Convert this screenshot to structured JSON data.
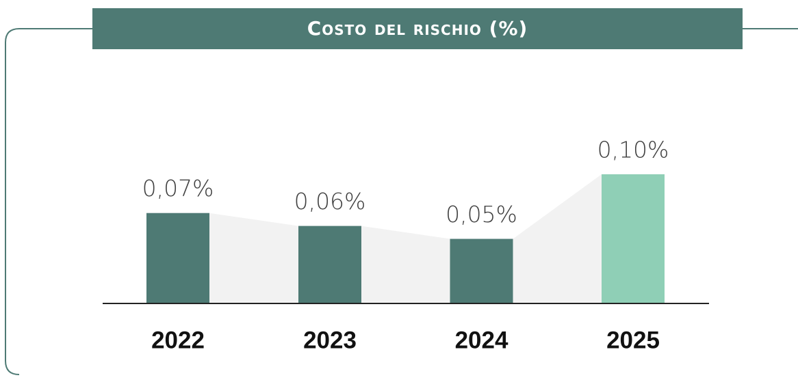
{
  "chart_data": {
    "type": "bar",
    "title": "Costo del rischio (%)",
    "categories": [
      "2022",
      "2023",
      "2024",
      "2025"
    ],
    "values": [
      0.07,
      0.06,
      0.05,
      0.1
    ],
    "value_labels": [
      "0,07%",
      "0,06%",
      "0,05%",
      "0,10%"
    ],
    "colors": [
      "#4e7a74",
      "#4e7a74",
      "#4e7a74",
      "#8fcfb6"
    ]
  }
}
